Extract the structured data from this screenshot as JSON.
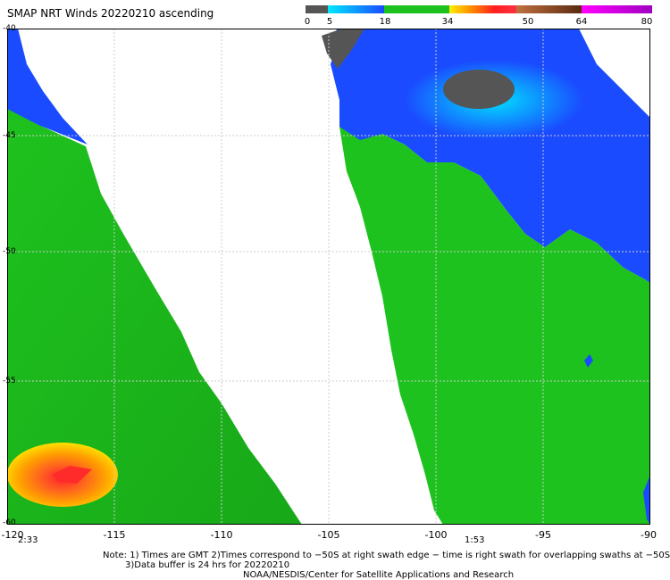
{
  "title": "SMAP NRT Winds 20220210 ascending",
  "colorbar": {
    "labels": [
      "0",
      "5",
      "18",
      "34",
      "50",
      "64",
      "80"
    ],
    "segments": [
      {
        "from": 0,
        "to": 5,
        "color": "#555555"
      },
      {
        "from": 5,
        "to": 18,
        "color": "#1a4bff"
      },
      {
        "from": 18,
        "to": 34,
        "color": "#1ec21e"
      },
      {
        "from": 34,
        "to": 50,
        "color": "#ff3030"
      },
      {
        "from": 50,
        "to": 64,
        "color": "#7a3a1a"
      },
      {
        "from": 64,
        "to": 80,
        "color": "#cc00cc"
      }
    ]
  },
  "map": {
    "x_ticks": [
      "-120",
      "-115",
      "-110",
      "-105",
      "-100",
      "-95",
      "-90"
    ],
    "y_ticks": [
      "-40",
      "-45",
      "-50",
      "-55",
      "-60"
    ],
    "times": {
      "left": "2:33",
      "right": "1:53"
    },
    "colors": {
      "green": "#1ec21e",
      "green_dark": "#1aa51a",
      "blue": "#1a4bff",
      "cyan": "#00d8ff",
      "gray": "#555555",
      "yellow": "#ffd000",
      "orange": "#ff8a00",
      "red": "#ff2a2a"
    }
  },
  "notes": {
    "line1": "Note: 1) Times are GMT 2)Times correspond to −50S at right swath edge − time is right swath for overlapping swaths at −50S",
    "line2": "3)Data buffer is 24 hrs for 20220210",
    "line3": "NOAA/NESDIS/Center for Satellite Applications and Research"
  }
}
